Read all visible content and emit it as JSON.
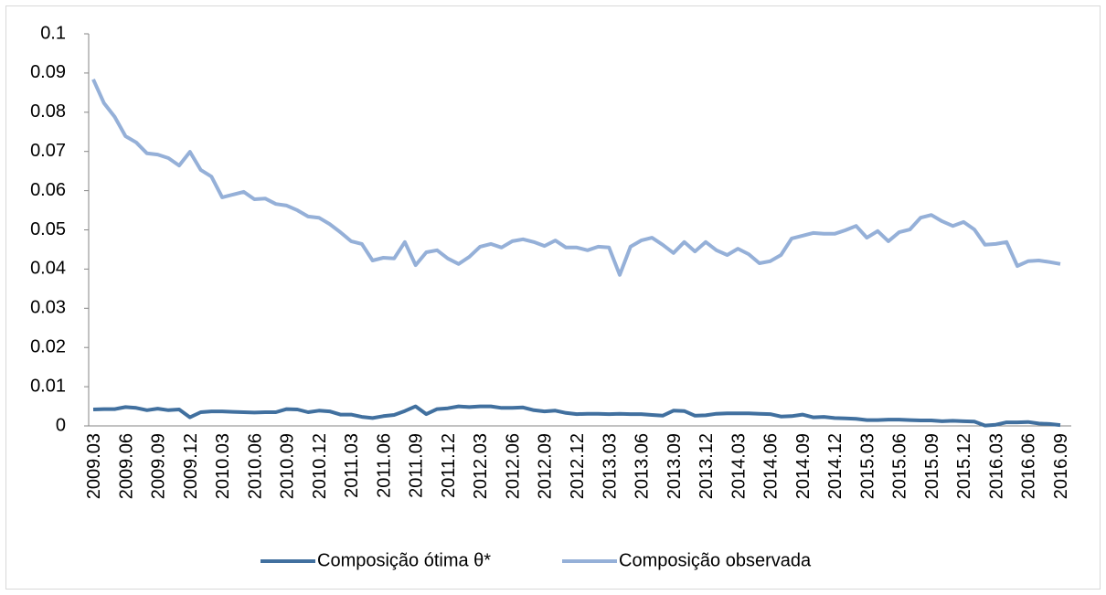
{
  "chart_data": {
    "type": "line",
    "categories": [
      "2009.03",
      null,
      null,
      "2009.06",
      null,
      null,
      "2009.09",
      null,
      null,
      "2009.12",
      null,
      null,
      "2010.03",
      null,
      null,
      "2010.06",
      null,
      null,
      "2010.09",
      null,
      null,
      "2010.12",
      null,
      null,
      "2011.03",
      null,
      null,
      "2011.06",
      null,
      null,
      "2011.09",
      null,
      null,
      "2011.12",
      null,
      null,
      "2012.03",
      null,
      null,
      "2012.06",
      null,
      null,
      "2012.09",
      null,
      null,
      "2012.12",
      null,
      null,
      "2013.03",
      null,
      null,
      "2013.06",
      null,
      null,
      "2013.09",
      null,
      null,
      "2013.12",
      null,
      null,
      "2014.03",
      null,
      null,
      "2014.06",
      null,
      null,
      "2014.09",
      null,
      null,
      "2014.12",
      null,
      null,
      "2015.03",
      null,
      null,
      "2015.06",
      null,
      null,
      "2015.09",
      null,
      null,
      "2015.12",
      null,
      null,
      "2016.03",
      null,
      null,
      "2016.06",
      null,
      null,
      "2016.09"
    ],
    "series": [
      {
        "name": "Composição ótima θ*",
        "color": "#41709f",
        "values": [
          0.0042,
          0.0043,
          0.0043,
          0.0048,
          0.0046,
          0.004,
          0.0044,
          0.004,
          0.0042,
          0.0022,
          0.0035,
          0.0037,
          0.0037,
          0.0036,
          0.0035,
          0.0034,
          0.0035,
          0.0035,
          0.0043,
          0.0042,
          0.0035,
          0.0039,
          0.0037,
          0.0029,
          0.0029,
          0.0023,
          0.002,
          0.0025,
          0.0028,
          0.0038,
          0.005,
          0.003,
          0.0043,
          0.0045,
          0.005,
          0.0048,
          0.005,
          0.005,
          0.0046,
          0.0046,
          0.0047,
          0.004,
          0.0037,
          0.0039,
          0.0033,
          0.003,
          0.0031,
          0.0031,
          0.003,
          0.0031,
          0.003,
          0.003,
          0.0028,
          0.0026,
          0.0039,
          0.0038,
          0.0026,
          0.0027,
          0.0031,
          0.0032,
          0.0032,
          0.0032,
          0.0031,
          0.003,
          0.0024,
          0.0025,
          0.0029,
          0.0022,
          0.0023,
          0.002,
          0.0019,
          0.0018,
          0.0015,
          0.0015,
          0.0016,
          0.0016,
          0.0015,
          0.0014,
          0.0014,
          0.0012,
          0.0013,
          0.0012,
          0.0011,
          0.0001,
          0.0003,
          0.0009,
          0.0009,
          0.001,
          0.0006,
          0.0005,
          0.0002
        ]
      },
      {
        "name": "Composição observada",
        "color": "#95b0d8",
        "values": [
          0.0884,
          0.0823,
          0.0788,
          0.0739,
          0.0723,
          0.0695,
          0.0692,
          0.0683,
          0.0664,
          0.0699,
          0.0653,
          0.0636,
          0.0583,
          0.059,
          0.0597,
          0.0578,
          0.058,
          0.0566,
          0.0562,
          0.055,
          0.0534,
          0.0531,
          0.0515,
          0.0494,
          0.0471,
          0.0464,
          0.0422,
          0.0429,
          0.0427,
          0.0469,
          0.041,
          0.0443,
          0.0448,
          0.0427,
          0.0413,
          0.0431,
          0.0457,
          0.0464,
          0.0455,
          0.0471,
          0.0476,
          0.0469,
          0.0459,
          0.0473,
          0.0455,
          0.0455,
          0.0448,
          0.0457,
          0.0455,
          0.0385,
          0.0457,
          0.0473,
          0.048,
          0.0462,
          0.0441,
          0.0469,
          0.0445,
          0.0469,
          0.0448,
          0.0436,
          0.0452,
          0.0438,
          0.0415,
          0.042,
          0.0436,
          0.0478,
          0.0485,
          0.0492,
          0.049,
          0.049,
          0.0499,
          0.051,
          0.048,
          0.0497,
          0.0471,
          0.0494,
          0.0501,
          0.0531,
          0.0538,
          0.0522,
          0.051,
          0.052,
          0.0501,
          0.0462,
          0.0464,
          0.0469,
          0.0408,
          0.042,
          0.0422,
          0.0418,
          0.0413
        ]
      }
    ],
    "ylim": [
      0,
      0.1
    ],
    "yticks": [
      0,
      0.01,
      0.02,
      0.03,
      0.04,
      0.05,
      0.06,
      0.07,
      0.08,
      0.09,
      0.1
    ],
    "legend": "bottom",
    "grid": false
  }
}
